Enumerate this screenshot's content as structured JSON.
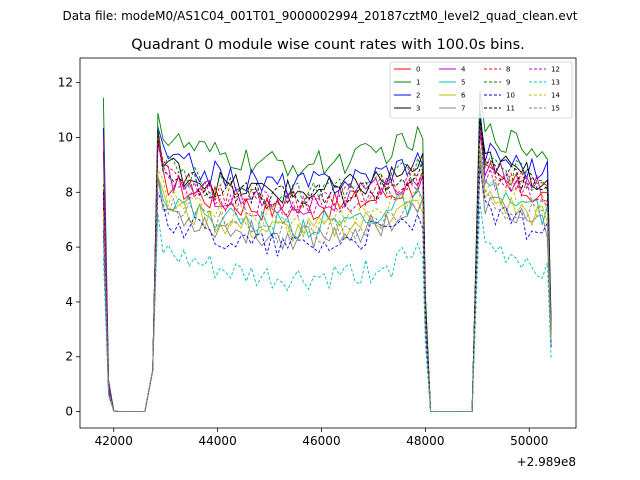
{
  "suptitle": "Data file: modeM0/AS1C04_001T01_9000002994_20187cztM0_level2_quad_clean.evt",
  "chart_data": {
    "type": "line",
    "title": "Quadrant 0 module wise count rates with 100.0s bins.",
    "xlabel": "",
    "ylabel": "",
    "x_offset_label": "+2.989e8",
    "xlim": [
      41350,
      50900
    ],
    "ylim": [
      -0.6,
      12.9
    ],
    "x_ticks": [
      42000,
      44000,
      46000,
      48000,
      50000
    ],
    "x_tick_labels": [
      "42000",
      "44000",
      "46000",
      "48000",
      "50000"
    ],
    "y_ticks": [
      0,
      2,
      4,
      6,
      8,
      10,
      12
    ],
    "y_tick_labels": [
      "0",
      "2",
      "4",
      "6",
      "8",
      "10",
      "12"
    ],
    "legend_position": "upper-right",
    "legend_columns": 4,
    "segments": [
      {
        "start": 41800,
        "end": 42650,
        "rise": false,
        "drop_end": 42000
      },
      {
        "start": 42650,
        "end": 48050,
        "rise": true,
        "rise_end": 42950,
        "drop_start": 47950
      },
      {
        "start": 48050,
        "end": 49000,
        "rise": false
      },
      {
        "start": 49000,
        "end": 50420,
        "rise": true,
        "rise_end": 49050,
        "drop_start": 50350
      }
    ],
    "series": [
      {
        "name": "0",
        "color": "#ff0000",
        "dash": "solid",
        "level": 8.0,
        "first": 7.5
      },
      {
        "name": "1",
        "color": "#008000",
        "dash": "solid",
        "level": 9.6,
        "first": 11.45
      },
      {
        "name": "2",
        "color": "#0000ff",
        "dash": "solid",
        "level": 8.9,
        "first": 10.35
      },
      {
        "name": "3",
        "color": "#000000",
        "dash": "solid",
        "level": 8.6,
        "first": 9.5
      },
      {
        "name": "4",
        "color": "#c000c0",
        "dash": "solid",
        "level": 8.2,
        "first": 10.0
      },
      {
        "name": "5",
        "color": "#00bfbf",
        "dash": "solid",
        "level": 7.4,
        "first": 7.0
      },
      {
        "name": "6",
        "color": "#bfbf00",
        "dash": "solid",
        "level": 7.2,
        "first": 6.8
      },
      {
        "name": "7",
        "color": "#808080",
        "dash": "solid",
        "level": 7.0,
        "first": 6.5
      },
      {
        "name": "8",
        "color": "#ff0000",
        "dash": "dashed",
        "level": 8.3,
        "first": 8.1
      },
      {
        "name": "9",
        "color": "#008000",
        "dash": "dashed",
        "level": 8.5,
        "first": 8.3
      },
      {
        "name": "10",
        "color": "#0000ff",
        "dash": "dashed",
        "level": 6.7,
        "first": 6.6
      },
      {
        "name": "11",
        "color": "#000000",
        "dash": "dashed",
        "level": 8.4,
        "first": 8.0
      },
      {
        "name": "12",
        "color": "#c000c0",
        "dash": "dashed",
        "level": 8.1,
        "first": 7.9
      },
      {
        "name": "13",
        "color": "#00bfbf",
        "dash": "dashed",
        "level": 5.4,
        "first": 5.6
      },
      {
        "name": "14",
        "color": "#bfbf00",
        "dash": "dashed",
        "level": 7.6,
        "first": 7.3
      },
      {
        "name": "15",
        "color": "#808080",
        "dash": "dashed",
        "level": 7.1,
        "first": 6.9
      }
    ]
  }
}
